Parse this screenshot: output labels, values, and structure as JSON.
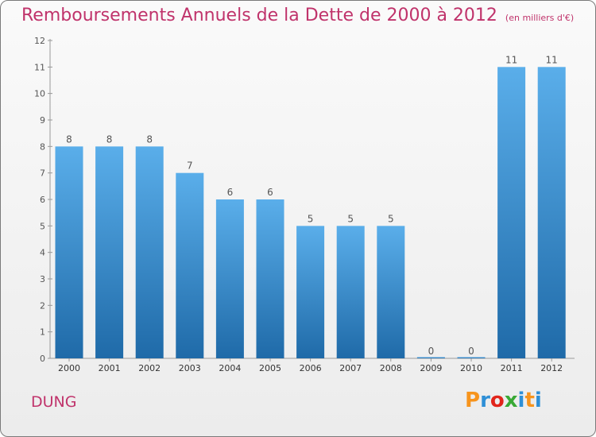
{
  "title": "Remboursements Annuels de la Dette de 2000 à 2012",
  "unit": "(en milliers d'€)",
  "commune": "DUNG",
  "logo": {
    "text": "Proxiti",
    "letters": [
      {
        "ch": "P",
        "color": "#f7941d"
      },
      {
        "ch": "r",
        "color": "#2e8fd6"
      },
      {
        "ch": "o",
        "color": "#e1251b"
      },
      {
        "ch": "x",
        "color": "#39a935"
      },
      {
        "ch": "i",
        "color": "#2e8fd6"
      },
      {
        "ch": "t",
        "color": "#f7941d"
      },
      {
        "ch": "i",
        "color": "#2e8fd6"
      }
    ]
  },
  "colors": {
    "accent": "#c0336b",
    "bar_top": "#5aaeea",
    "bar_bottom": "#1f6aa8"
  },
  "chart_data": {
    "type": "bar",
    "categories": [
      "2000",
      "2001",
      "2002",
      "2003",
      "2004",
      "2005",
      "2006",
      "2007",
      "2008",
      "2009",
      "2010",
      "2011",
      "2012"
    ],
    "values": [
      8,
      8,
      8,
      7,
      6,
      6,
      5,
      5,
      5,
      0,
      0,
      11,
      11
    ],
    "data_labels": [
      "8",
      "8",
      "8",
      "7",
      "6",
      "6",
      "5",
      "5",
      "5",
      "0",
      "0",
      "11",
      "11"
    ],
    "yticks": [
      0,
      1,
      2,
      3,
      4,
      5,
      6,
      7,
      8,
      9,
      10,
      11,
      12
    ],
    "ylim": [
      0,
      12
    ],
    "grid": false,
    "legend": "none"
  }
}
